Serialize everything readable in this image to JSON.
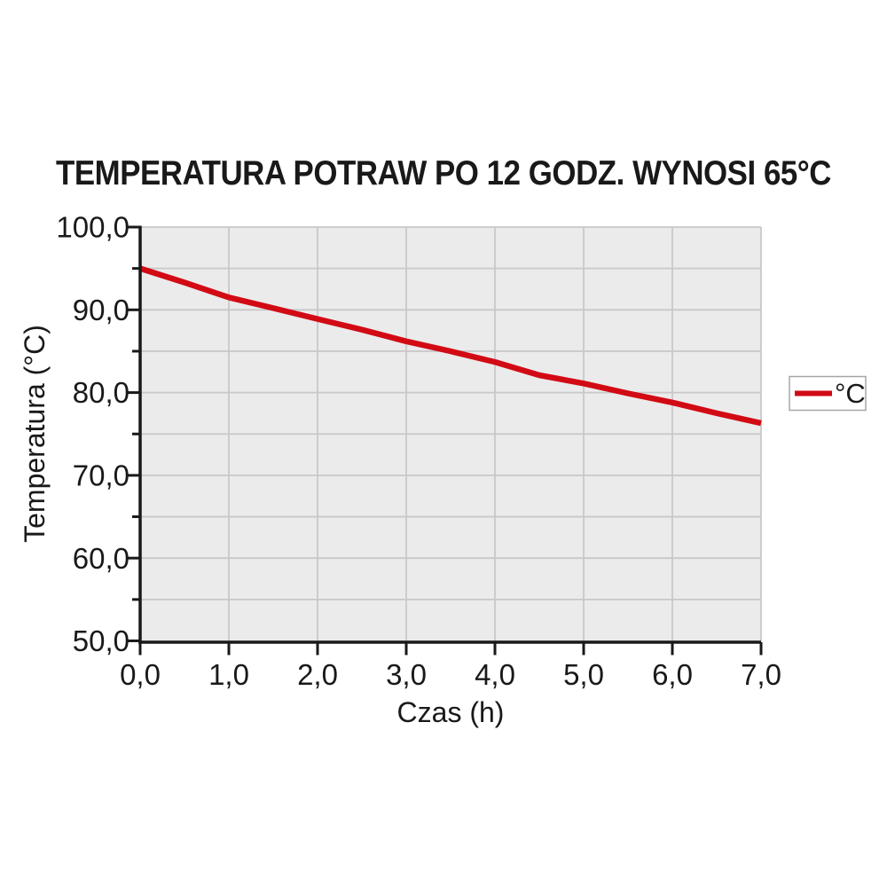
{
  "title": "TEMPERATURA POTRAW PO 12 GODZ. WYNOSI 65°C",
  "legend": {
    "label": "°C",
    "position": "right-middle"
  },
  "x_axis": {
    "label": "Czas (h)",
    "tick_labels": [
      "0,0",
      "1,0",
      "2,0",
      "3,0",
      "4,0",
      "5,0",
      "6,0",
      "7,0"
    ]
  },
  "y_axis": {
    "label": "Temperatura (°C)",
    "tick_labels": [
      "100,0",
      "90,0",
      "80,0",
      "70,0",
      "60,0",
      "50,0"
    ]
  },
  "chart_data": {
    "type": "line",
    "title": "TEMPERATURA POTRAW PO 12 GODZ. WYNOSI 65°C",
    "xlabel": "Czas (h)",
    "ylabel": "Temperatura (°C)",
    "xlim": [
      0,
      7
    ],
    "ylim": [
      50,
      100
    ],
    "x_tick_step": 1.0,
    "y_tick_major_step": 10,
    "y_tick_minor_step": 5,
    "grid": {
      "vertical_step": 1.0,
      "horizontal_step": 5.0,
      "visible": true
    },
    "x": [
      0,
      0.5,
      1,
      1.5,
      2,
      2.5,
      3,
      3.5,
      4,
      4.5,
      5,
      5.5,
      6,
      6.5,
      7
    ],
    "series": [
      {
        "name": "°C",
        "color": "#d20a14",
        "values": [
          95.0,
          93.3,
          91.5,
          90.2,
          88.9,
          87.6,
          86.2,
          85.0,
          83.7,
          82.1,
          81.1,
          79.9,
          78.8,
          77.5,
          76.3
        ]
      }
    ],
    "legend_position": "right-middle",
    "plot_background": "#ebebeb",
    "gridline_color": "#c8c8c8"
  },
  "colors": {
    "line_red": "#d20a14",
    "text": "#191919",
    "plot_bg": "#ebebeb",
    "grid": "#c8c8c8",
    "axis": "#191919",
    "legend_border": "#a6a6a6",
    "page_bg": "#ffffff"
  }
}
